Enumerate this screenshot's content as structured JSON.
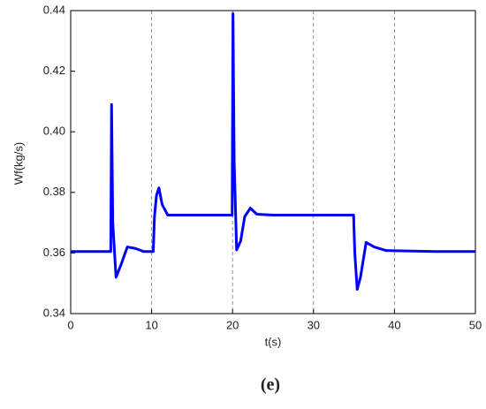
{
  "chart_data": {
    "type": "line",
    "x_label": "t(s)",
    "y_label": "Wf(kg/s)",
    "caption": "(e)",
    "x": [
      0,
      4.95,
      5.05,
      5.2,
      5.6,
      6.2,
      7,
      8,
      9,
      10.2,
      10.35,
      10.6,
      10.9,
      11.3,
      12,
      15,
      19.95,
      20.05,
      20.2,
      20.5,
      21,
      21.5,
      22.2,
      23,
      25,
      30,
      34.95,
      35.1,
      35.4,
      35.8,
      36.5,
      37.5,
      39,
      45,
      50
    ],
    "series": [
      {
        "color": "#0000ff",
        "values": [
          0.3605,
          0.3605,
          0.409,
          0.37,
          0.352,
          0.356,
          0.362,
          0.3615,
          0.3605,
          0.3605,
          0.372,
          0.379,
          0.3815,
          0.376,
          0.3725,
          0.3725,
          0.3725,
          0.439,
          0.39,
          0.361,
          0.364,
          0.372,
          0.3748,
          0.3728,
          0.3725,
          0.3725,
          0.3725,
          0.36,
          0.348,
          0.352,
          0.3635,
          0.362,
          0.3608,
          0.3605,
          0.3605
        ]
      }
    ],
    "xlim": [
      0,
      50
    ],
    "xticks": [
      0,
      10,
      20,
      30,
      40,
      50
    ],
    "ylim": [
      0.34,
      0.44
    ],
    "yticks": [
      0.34,
      0.36,
      0.38,
      {
        "value": 0.4,
        "label": "0.40"
      },
      0.42,
      0.44
    ],
    "grid": "x"
  }
}
